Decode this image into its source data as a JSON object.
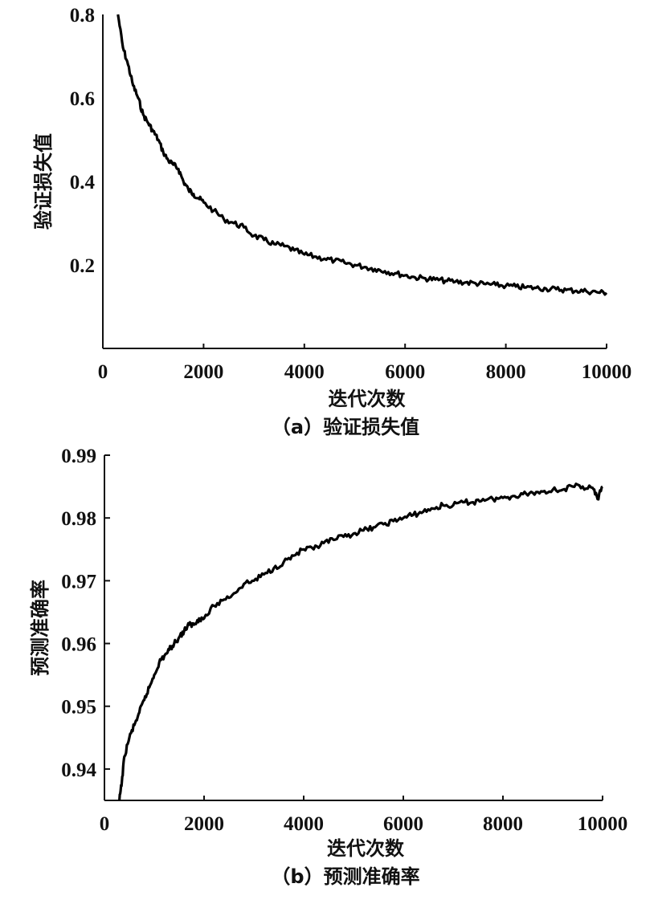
{
  "chart_data": [
    {
      "type": "line",
      "caption": "（a）验证损失值",
      "xlabel": "迭代次数",
      "ylabel": "验证损失值",
      "xlim": [
        0,
        10000
      ],
      "ylim": [
        0,
        0.8
      ],
      "xticks": [
        0,
        2000,
        4000,
        6000,
        8000,
        10000
      ],
      "yticks": [
        0.2,
        0.4,
        0.6,
        0.8
      ],
      "x": [
        300,
        400,
        500,
        600,
        700,
        800,
        900,
        1000,
        1100,
        1200,
        1300,
        1400,
        1500,
        1600,
        1700,
        1800,
        1900,
        2000,
        2200,
        2400,
        2600,
        2800,
        3000,
        3200,
        3400,
        3600,
        3800,
        4000,
        4200,
        4400,
        4600,
        4800,
        5000,
        5200,
        5400,
        5600,
        5800,
        6000,
        6200,
        6400,
        6600,
        6800,
        7000,
        7200,
        7400,
        7600,
        7800,
        8000,
        8200,
        8400,
        8600,
        8800,
        9000,
        9200,
        9400,
        9600,
        9800,
        10000
      ],
      "y": [
        0.8,
        0.72,
        0.68,
        0.63,
        0.6,
        0.56,
        0.54,
        0.52,
        0.5,
        0.47,
        0.45,
        0.44,
        0.43,
        0.4,
        0.38,
        0.37,
        0.36,
        0.35,
        0.33,
        0.31,
        0.3,
        0.29,
        0.27,
        0.26,
        0.25,
        0.245,
        0.235,
        0.225,
        0.22,
        0.215,
        0.21,
        0.205,
        0.2,
        0.195,
        0.19,
        0.185,
        0.18,
        0.175,
        0.17,
        0.168,
        0.165,
        0.162,
        0.16,
        0.158,
        0.156,
        0.154,
        0.152,
        0.15,
        0.148,
        0.146,
        0.145,
        0.143,
        0.142,
        0.14,
        0.138,
        0.137,
        0.135,
        0.133
      ]
    },
    {
      "type": "line",
      "caption": "（b）预测准确率",
      "xlabel": "迭代次数",
      "ylabel": "预测准确率",
      "xlim": [
        0,
        10000
      ],
      "ylim": [
        0.935,
        0.99
      ],
      "xticks": [
        0,
        2000,
        4000,
        6000,
        8000,
        10000
      ],
      "yticks": [
        0.94,
        0.95,
        0.96,
        0.97,
        0.98,
        0.99
      ],
      "x": [
        300,
        350,
        400,
        500,
        600,
        700,
        800,
        900,
        1000,
        1100,
        1200,
        1300,
        1400,
        1500,
        1600,
        1700,
        1800,
        1900,
        2000,
        2200,
        2400,
        2600,
        2800,
        3000,
        3200,
        3400,
        3600,
        3800,
        4000,
        4200,
        4400,
        4600,
        4800,
        5000,
        5200,
        5400,
        5600,
        5800,
        6000,
        6200,
        6400,
        6600,
        6800,
        7000,
        7200,
        7400,
        7600,
        7800,
        8000,
        8200,
        8400,
        8600,
        8800,
        9000,
        9200,
        9400,
        9600,
        9800,
        9900,
        10000
      ],
      "y": [
        0.935,
        0.938,
        0.942,
        0.945,
        0.947,
        0.949,
        0.951,
        0.953,
        0.955,
        0.957,
        0.958,
        0.959,
        0.96,
        0.961,
        0.962,
        0.963,
        0.963,
        0.964,
        0.964,
        0.966,
        0.967,
        0.968,
        0.9695,
        0.97,
        0.971,
        0.972,
        0.973,
        0.974,
        0.975,
        0.975,
        0.976,
        0.9765,
        0.977,
        0.9775,
        0.978,
        0.9785,
        0.979,
        0.9795,
        0.98,
        0.9805,
        0.981,
        0.9815,
        0.982,
        0.982,
        0.9825,
        0.9825,
        0.983,
        0.983,
        0.9832,
        0.9835,
        0.9838,
        0.984,
        0.9842,
        0.9845,
        0.9845,
        0.985,
        0.985,
        0.9848,
        0.983,
        0.985
      ]
    }
  ]
}
